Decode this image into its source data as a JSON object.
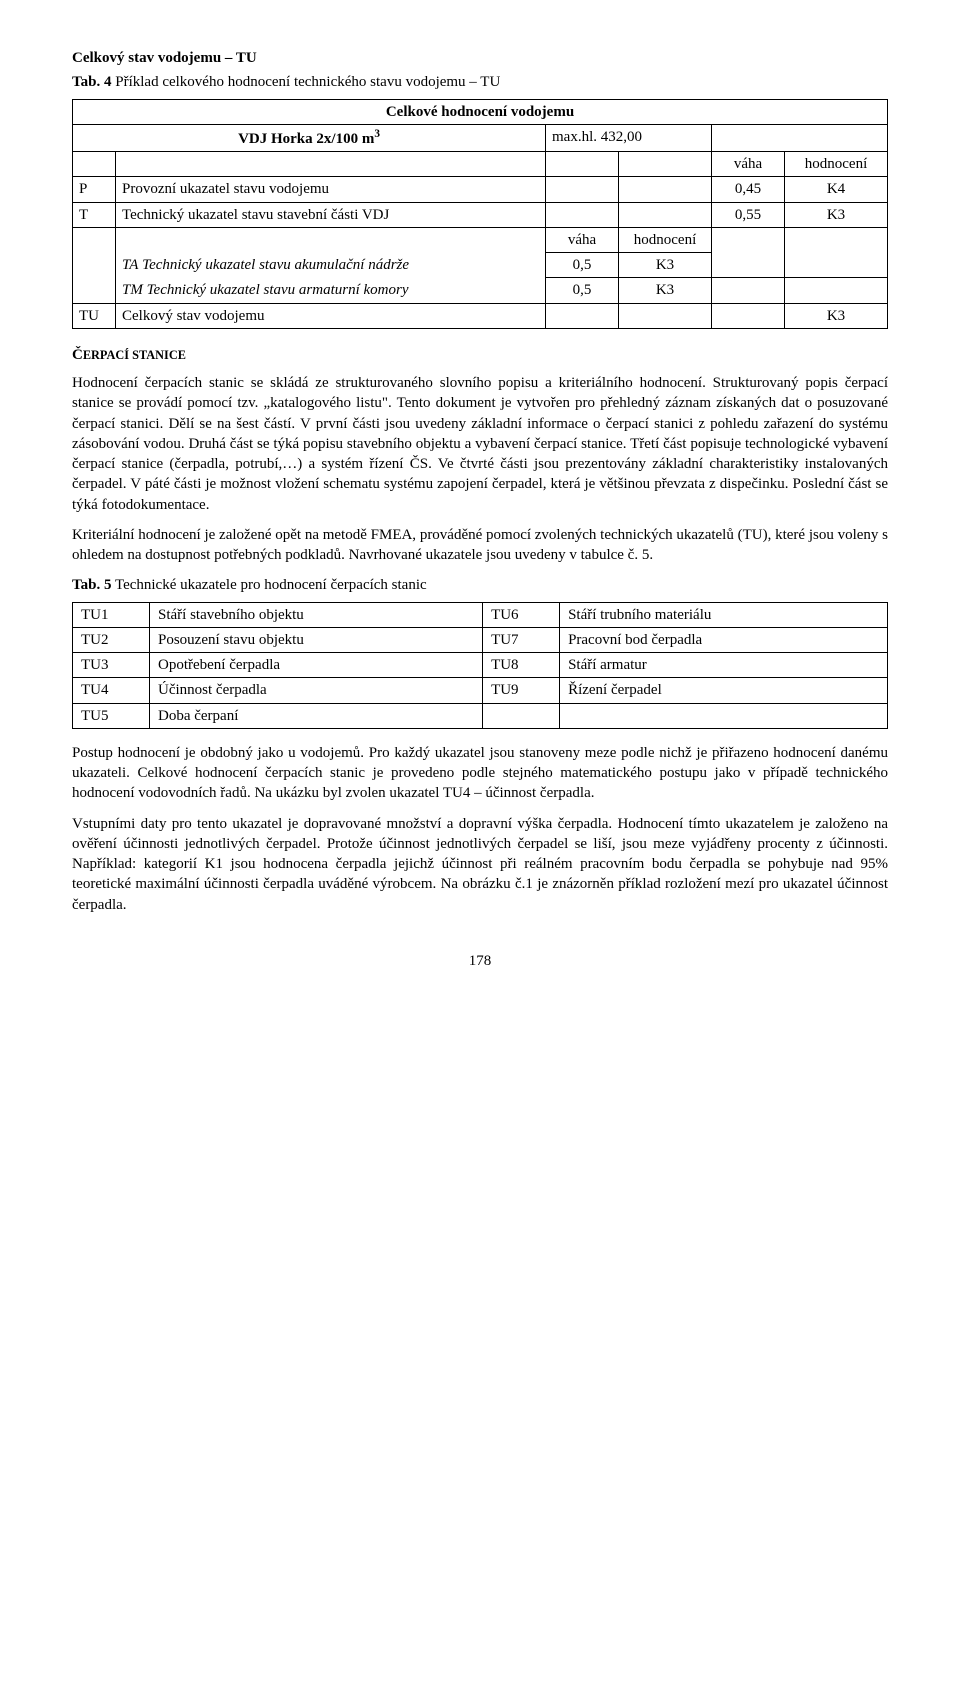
{
  "section1_title": "Celkový stav vodojemu – TU",
  "tab4": {
    "label": "Tab. 4",
    "caption": " Příklad celkového hodnocení technického stavu vodojemu – TU",
    "head1": "Celkové hodnocení vodojemu",
    "vdj_label_pre": "VDJ Horka  2x/100 m",
    "vdj_exp": "3",
    "maxhl": "max.hl. 432,00",
    "vaha": "váha",
    "hodnoceni": "hodnocení",
    "rows": [
      {
        "c": "P",
        "d": "Provozní ukazatel stavu vodojemu",
        "v": "",
        "h": "",
        "vv": "0,45",
        "hh": "K4"
      },
      {
        "c": "T",
        "d": "Technický ukazatel stavu stavební části VDJ",
        "v": "",
        "h": "",
        "vv": "0,55",
        "hh": "K3"
      }
    ],
    "subhead_v": "váha",
    "subhead_h": "hodnocení",
    "subrows": [
      {
        "c": "TA",
        "d": "Technický ukazatel stavu akumulační nádrže",
        "v": "0,5",
        "h": "K3"
      },
      {
        "c": "TM",
        "d": "Technický ukazatel stavu armaturní komory",
        "v": "0,5",
        "h": "K3"
      }
    ],
    "tu_row": {
      "c": "TU",
      "d": "Celkový stav vodojemu",
      "hh": "K3"
    }
  },
  "cerpaci_title": "ČERPACÍ STANICE",
  "p1": "Hodnocení čerpacích stanic se skládá ze strukturovaného slovního popisu a kriteriálního hodnocení. Strukturovaný popis čerpací stanice se provádí pomocí tzv. „katalogového listu\". Tento dokument je vytvořen pro přehledný záznam získaných dat o posuzované čerpací stanici. Dělí se na šest částí. V první části jsou uvedeny základní informace o čerpací stanici z pohledu zařazení do systému zásobování vodou. Druhá část se týká popisu stavebního objektu a vybavení čerpací stanice. Třetí část popisuje technologické vybavení čerpací stanice (čerpadla, potrubí,…) a systém řízení ČS. Ve čtvrté části jsou prezentovány základní charakteristiky instalovaných čerpadel. V páté části je možnost vložení schematu systému zapojení čerpadel, která je většinou převzata z dispečinku. Poslední část se týká fotodokumentace.",
  "p2": "Kriteriální hodnocení je založené opět na metodě FMEA, prováděné pomocí zvolených technických ukazatelů (TU), které jsou voleny s ohledem na dostupnost potřebných podkladů. Navrhované ukazatele jsou uvedeny v tabulce č. 5.",
  "tab5": {
    "label": "Tab. 5",
    "caption": " Technické ukazatele pro hodnocení čerpacích stanic",
    "left": [
      {
        "c": "TU1",
        "d": "Stáří stavebního objektu"
      },
      {
        "c": "TU2",
        "d": "Posouzení stavu objektu"
      },
      {
        "c": "TU3",
        "d": "Opotřebení čerpadla"
      },
      {
        "c": "TU4",
        "d": "Účinnost čerpadla"
      },
      {
        "c": "TU5",
        "d": "Doba čerpaní"
      }
    ],
    "right": [
      {
        "c": "TU6",
        "d": "Stáří trubního materiálu"
      },
      {
        "c": "TU7",
        "d": "Pracovní bod čerpadla"
      },
      {
        "c": "TU8",
        "d": "Stáří armatur"
      },
      {
        "c": "TU9",
        "d": "Řízení čerpadel"
      }
    ]
  },
  "p3": "Postup hodnocení je obdobný jako u vodojemů. Pro každý ukazatel jsou stanoveny meze podle nichž je přiřazeno hodnocení danému ukazateli. Celkové hodnocení čerpacích stanic je provedeno podle stejného matematického postupu jako v případě technického hodnocení vodovodních řadů. Na ukázku byl zvolen ukazatel TU4 – účinnost čerpadla.",
  "p4": "Vstupními daty pro tento ukazatel je dopravované množství a dopravní výška čerpadla. Hodnocení tímto ukazatelem je založeno na ověření účinnosti jednotlivých čerpadel. Protože účinnost jednotlivých čerpadel se liší, jsou meze vyjádřeny procenty z účinnosti. Například: kategorií K1 jsou hodnocena čerpadla jejichž účinnost při reálném pracovním bodu čerpadla se pohybuje nad 95% teoretické maximální účinnosti čerpadla uváděné výrobcem. Na obrázku č.1 je znázorněn příklad rozložení mezí pro ukazatel účinnost čerpadla.",
  "page": "178"
}
